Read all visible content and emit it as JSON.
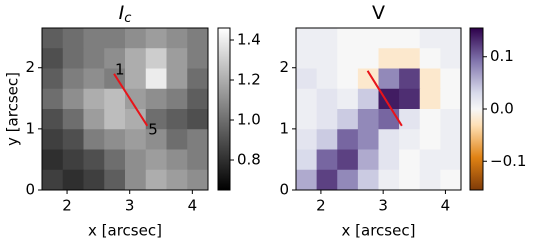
{
  "chart_data": [
    {
      "type": "heatmap",
      "title": "I",
      "title_subscript": "c",
      "xlabel": "x [arcsec]",
      "ylabel": "y [arcsec]",
      "xlim": [
        1.6,
        4.25
      ],
      "ylim": [
        0,
        2.65
      ],
      "xticks": [
        2,
        3,
        4
      ],
      "yticks": [
        0,
        1,
        2
      ],
      "colormap": "gray",
      "clim": [
        0.65,
        1.46
      ],
      "cticks": [
        0.8,
        {
          "value": 1,
          "label": "1.0"
        },
        1.2,
        1.4
      ],
      "z": [
        [
          0.95,
          1.0,
          1.05,
          1.05,
          1.1,
          1.15,
          1.1,
          1.05
        ],
        [
          0.9,
          1.0,
          1.05,
          1.1,
          1.2,
          1.3,
          1.15,
          1.05
        ],
        [
          0.95,
          1.05,
          1.1,
          1.05,
          1.2,
          1.4,
          1.15,
          1.0
        ],
        [
          1.0,
          1.1,
          1.2,
          1.25,
          1.15,
          1.1,
          1.05,
          0.95
        ],
        [
          0.9,
          1.0,
          1.15,
          1.25,
          1.2,
          1.0,
          0.95,
          0.9
        ],
        [
          0.85,
          0.9,
          1.05,
          1.1,
          1.15,
          1.1,
          1.0,
          1.05
        ],
        [
          0.8,
          0.85,
          0.9,
          1.0,
          1.1,
          1.15,
          1.1,
          1.05
        ],
        [
          0.85,
          0.8,
          0.85,
          0.95,
          1.1,
          1.2,
          1.15,
          1.1
        ]
      ],
      "slit": {
        "x": [
          2.75,
          3.28
        ],
        "y": [
          1.9,
          1.05
        ],
        "labels": [
          "1",
          "5"
        ],
        "color": "#e8141a"
      }
    },
    {
      "type": "heatmap",
      "title": "V",
      "xlabel": "x [arcsec]",
      "xlim": [
        1.6,
        4.25
      ],
      "ylim": [
        0,
        2.65
      ],
      "xticks": [
        2,
        3,
        4
      ],
      "yticks": [
        0,
        1,
        2
      ],
      "colormap": "PuOr",
      "clim": [
        -0.155,
        0.155
      ],
      "cticks": [
        0.1,
        {
          "value": 0,
          "label": "0.0"
        },
        {
          "value": -0.1,
          "label": "−0.1"
        }
      ],
      "z": [
        [
          0.01,
          0.01,
          0.0,
          0.0,
          0.0,
          0.0,
          0.01,
          0.01
        ],
        [
          0.01,
          0.01,
          0.0,
          0.0,
          -0.02,
          -0.02,
          0.0,
          0.01
        ],
        [
          0.02,
          0.01,
          0.0,
          -0.02,
          0.08,
          0.12,
          -0.02,
          0.0
        ],
        [
          0.01,
          0.02,
          0.01,
          0.04,
          0.14,
          0.13,
          -0.02,
          0.0
        ],
        [
          0.01,
          0.02,
          0.04,
          0.08,
          0.1,
          0.02,
          0.0,
          0.01
        ],
        [
          0.02,
          0.04,
          0.1,
          0.08,
          0.02,
          0.01,
          0.0,
          0.01
        ],
        [
          0.03,
          0.1,
          0.12,
          0.06,
          0.02,
          0.0,
          0.01,
          0.01
        ],
        [
          0.06,
          0.12,
          0.08,
          0.04,
          0.01,
          0.0,
          0.01,
          0.0
        ]
      ],
      "slit": {
        "x": [
          2.75,
          3.3
        ],
        "y": [
          1.95,
          1.05
        ],
        "color": "#e8141a"
      }
    }
  ]
}
